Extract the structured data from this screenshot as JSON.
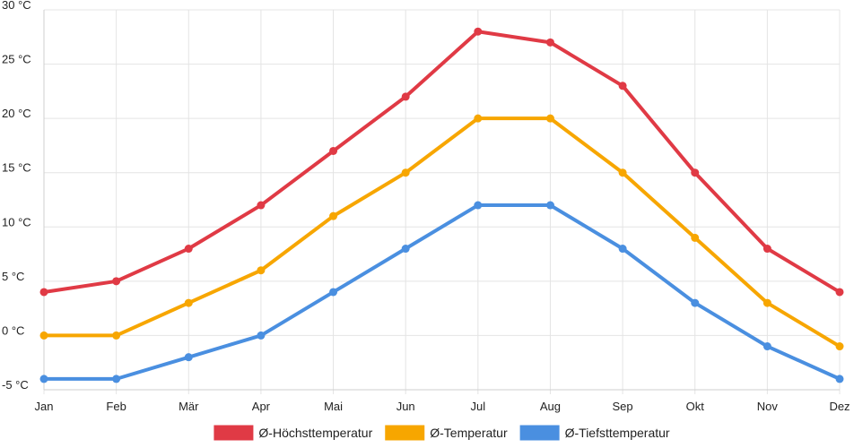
{
  "chart_data": {
    "type": "line",
    "categories": [
      "Jan",
      "Feb",
      "Mär",
      "Apr",
      "Mai",
      "Jun",
      "Jul",
      "Aug",
      "Sep",
      "Okt",
      "Nov",
      "Dez"
    ],
    "series": [
      {
        "name": "Ø-Höchsttemperatur",
        "color": "#e03a45",
        "values": [
          4,
          5,
          8,
          12,
          17,
          22,
          28,
          27,
          23,
          15,
          8,
          4
        ]
      },
      {
        "name": "Ø-Temperatur",
        "color": "#f7a600",
        "values": [
          0,
          0,
          3,
          6,
          11,
          15,
          20,
          20,
          15,
          9,
          3,
          -1
        ]
      },
      {
        "name": "Ø-Tiefsttemperatur",
        "color": "#4a8fe0",
        "values": [
          -4,
          -4,
          -2,
          0,
          4,
          8,
          12,
          12,
          8,
          3,
          -1,
          -4
        ]
      }
    ],
    "yticks": [
      {
        "value": 30,
        "label": "30 °C"
      },
      {
        "value": 25,
        "label": "25 °C"
      },
      {
        "value": 20,
        "label": "20 °C"
      },
      {
        "value": 15,
        "label": "15 °C"
      },
      {
        "value": 10,
        "label": "10 °C"
      },
      {
        "value": 5,
        "label": "5 °C"
      },
      {
        "value": 0,
        "label": "0 °C"
      },
      {
        "value": -5,
        "label": "-5 °C"
      }
    ],
    "ylim": [
      -5,
      30
    ],
    "grid": true,
    "legend_position": "bottom-center",
    "title": "",
    "xlabel": "",
    "ylabel": ""
  }
}
